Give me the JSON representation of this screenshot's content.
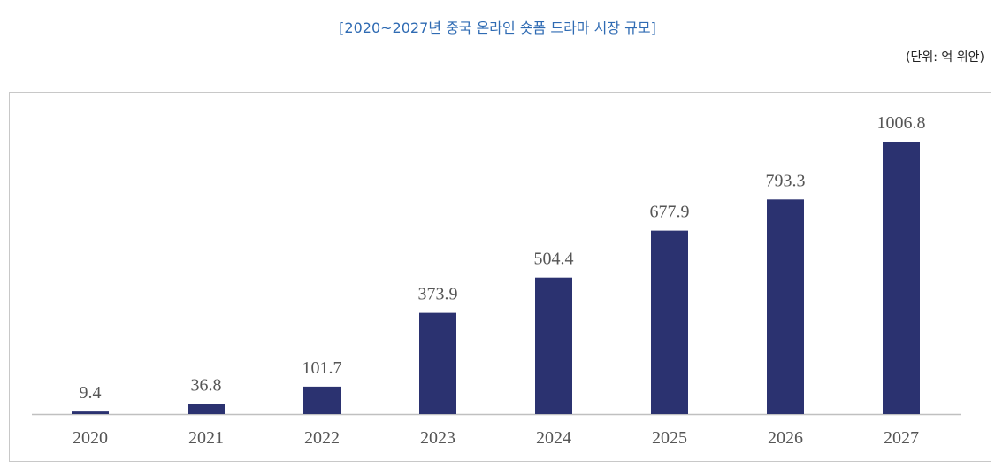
{
  "header": {
    "title": "[2020~2027년 중국 온라인 숏폼 드라마 시장 규모]",
    "unit": "(단위: 억 위안)"
  },
  "colors": {
    "bar": "#2b3270",
    "title": "#2f6bb3",
    "axis": "#c0c0c0"
  },
  "chart_data": {
    "type": "bar",
    "title": "[2020~2027년 중국 온라인 숏폼 드라마 시장 규모]",
    "unit": "(단위: 억 위안)",
    "categories": [
      "2020",
      "2021",
      "2022",
      "2023",
      "2024",
      "2025",
      "2026",
      "2027"
    ],
    "values": [
      9.4,
      36.8,
      101.7,
      373.9,
      504.4,
      677.9,
      793.3,
      1006.8
    ],
    "value_labels": [
      "9.4",
      "36.8",
      "101.7",
      "373.9",
      "504.4",
      "677.9",
      "793.3",
      "1006.8"
    ],
    "ylim": [
      0,
      1006.8
    ],
    "grid": false,
    "legend": "none"
  }
}
